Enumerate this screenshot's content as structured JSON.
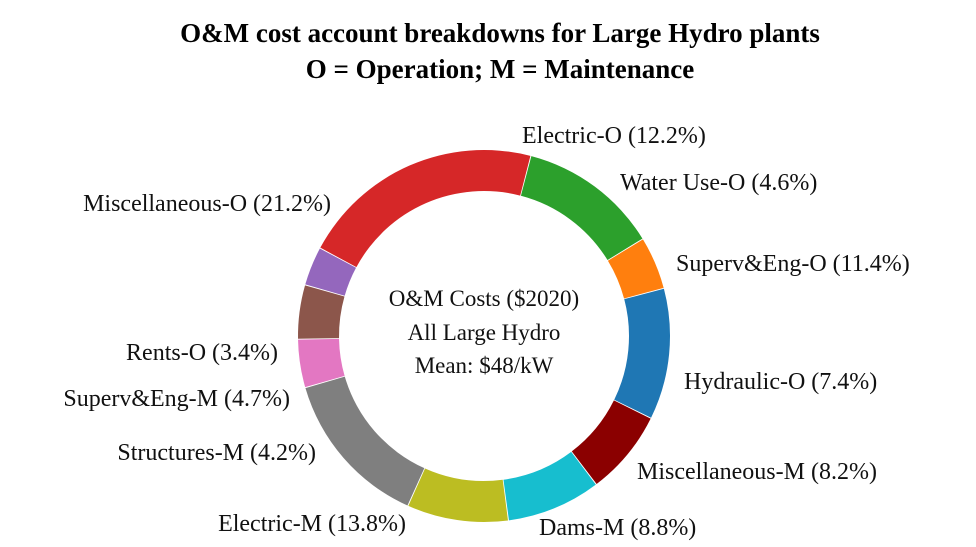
{
  "chart_data": {
    "type": "pie",
    "donut": true,
    "title": "O&M cost account breakdowns for Large Hydro plants",
    "subtitle": "O = Operation; M = Maintenance",
    "center_text": [
      "O&M Costs ($2020)",
      "All Large Hydro",
      "Mean: $48/kW"
    ],
    "slices": [
      {
        "label": "Electric-O (12.2%)",
        "value": 12.2,
        "color": "#2ca02c"
      },
      {
        "label": "Water Use-O (4.6%)",
        "value": 4.6,
        "color": "#ff7f0e"
      },
      {
        "label": "Superv&Eng-O (11.4%)",
        "value": 11.4,
        "color": "#1f77b4"
      },
      {
        "label": "Hydraulic-O (7.4%)",
        "value": 7.4,
        "color": "#8b0000"
      },
      {
        "label": "Miscellaneous-M (8.2%)",
        "value": 8.2,
        "color": "#17becf"
      },
      {
        "label": "Dams-M (8.8%)",
        "value": 8.8,
        "color": "#bcbd22"
      },
      {
        "label": "Electric-M (13.8%)",
        "value": 13.8,
        "color": "#7f7f7f"
      },
      {
        "label": "Structures-M (4.2%)",
        "value": 4.2,
        "color": "#e377c2"
      },
      {
        "label": "Superv&Eng-M (4.7%)",
        "value": 4.7,
        "color": "#8c564b"
      },
      {
        "label": "Rents-O (3.4%)",
        "value": 3.4,
        "color": "#9467bd"
      },
      {
        "label": "Miscellaneous-O (21.2%)",
        "value": 21.2,
        "color": "#d62728"
      }
    ]
  }
}
